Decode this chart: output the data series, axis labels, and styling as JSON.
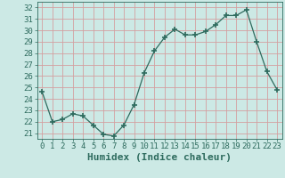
{
  "x": [
    0,
    1,
    2,
    3,
    4,
    5,
    6,
    7,
    8,
    9,
    10,
    11,
    12,
    13,
    14,
    15,
    16,
    17,
    18,
    19,
    20,
    21,
    22,
    23
  ],
  "y": [
    24.6,
    22.0,
    22.2,
    22.7,
    22.5,
    21.7,
    20.9,
    20.75,
    21.7,
    23.5,
    26.3,
    28.2,
    29.4,
    30.1,
    29.6,
    29.6,
    29.9,
    30.5,
    31.3,
    31.3,
    31.8,
    29.0,
    26.4,
    24.8
  ],
  "line_color": "#2e6b5e",
  "marker": "+",
  "marker_size": 4,
  "bg_color": "#cce9e5",
  "grid_color": "#d4a0a0",
  "tick_label_color": "#2e6b5e",
  "xlabel": "Humidex (Indice chaleur)",
  "xlabel_color": "#2e6b5e",
  "xlabel_fontsize": 8,
  "yticks": [
    21,
    22,
    23,
    24,
    25,
    26,
    27,
    28,
    29,
    30,
    31,
    32
  ],
  "xticks": [
    0,
    1,
    2,
    3,
    4,
    5,
    6,
    7,
    8,
    9,
    10,
    11,
    12,
    13,
    14,
    15,
    16,
    17,
    18,
    19,
    20,
    21,
    22,
    23
  ],
  "ylim": [
    20.5,
    32.5
  ],
  "xlim": [
    -0.5,
    23.5
  ],
  "tick_fontsize": 6.5
}
